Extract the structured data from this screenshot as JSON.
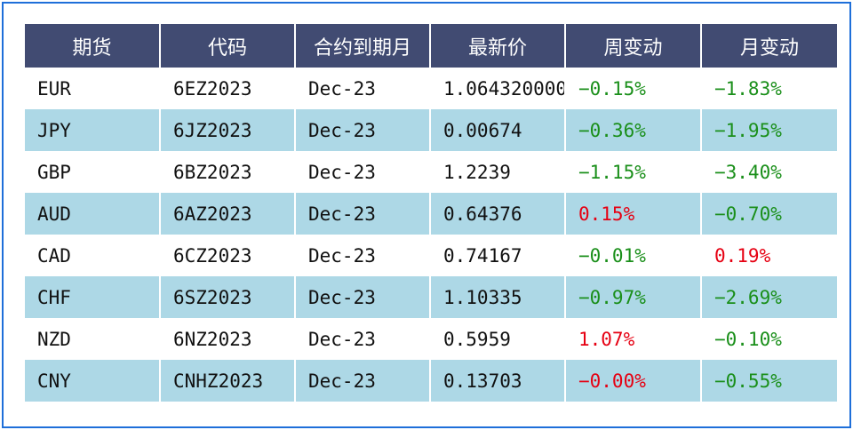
{
  "table": {
    "headers": [
      "期货",
      "代码",
      "合约到期月",
      "最新价",
      "周变动",
      "月变动"
    ],
    "rows": [
      {
        "future": "EUR",
        "code": "6EZ2023",
        "expiry": "Dec-23",
        "price": "1.064320000",
        "week": "−0.15%",
        "month": "−1.83%"
      },
      {
        "future": "JPY",
        "code": "6JZ2023",
        "expiry": "Dec-23",
        "price": "0.00674",
        "week": "−0.36%",
        "month": "−1.95%"
      },
      {
        "future": "GBP",
        "code": "6BZ2023",
        "expiry": "Dec-23",
        "price": "1.2239",
        "week": "−1.15%",
        "month": "−3.40%"
      },
      {
        "future": "AUD",
        "code": "6AZ2023",
        "expiry": "Dec-23",
        "price": "0.64376",
        "week": "0.15%",
        "month": "−0.70%"
      },
      {
        "future": "CAD",
        "code": "6CZ2023",
        "expiry": "Dec-23",
        "price": "0.74167",
        "week": "−0.01%",
        "month": "0.19%"
      },
      {
        "future": "CHF",
        "code": "6SZ2023",
        "expiry": "Dec-23",
        "price": "1.10335",
        "week": "−0.97%",
        "month": "−2.69%"
      },
      {
        "future": "NZD",
        "code": "6NZ2023",
        "expiry": "Dec-23",
        "price": "0.5959",
        "week": "1.07%",
        "month": "−0.10%"
      },
      {
        "future": "CNY",
        "code": "CNHZ2023",
        "expiry": "Dec-23",
        "price": "0.13703",
        "week": "−0.00%",
        "month": "−0.55%"
      }
    ]
  },
  "colors": {
    "header_bg": "#414b72",
    "stripe_bg": "#add8e6",
    "negative": "#1a8f1a",
    "positive": "#e60012",
    "frame_border": "#1e6fd9"
  }
}
